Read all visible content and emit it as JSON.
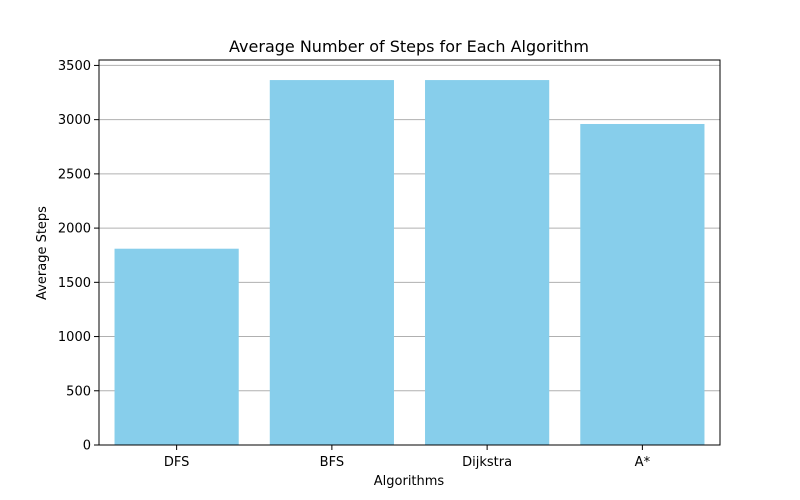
{
  "chart_data": {
    "type": "bar",
    "title": "Average Number of Steps for Each Algorithm",
    "xlabel": "Algorithms",
    "ylabel": "Average Steps",
    "categories": [
      "DFS",
      "BFS",
      "Dijkstra",
      "A*"
    ],
    "values": [
      1810,
      3365,
      3365,
      2960
    ],
    "ylim": [
      0,
      3550
    ],
    "yticks": [
      0,
      500,
      1000,
      1500,
      2000,
      2500,
      3000,
      3500
    ],
    "grid": {
      "y": true,
      "x": false
    },
    "bar_color": "#87ceeb",
    "grid_color": "#b0b0b0",
    "axis_color": "#000000"
  }
}
